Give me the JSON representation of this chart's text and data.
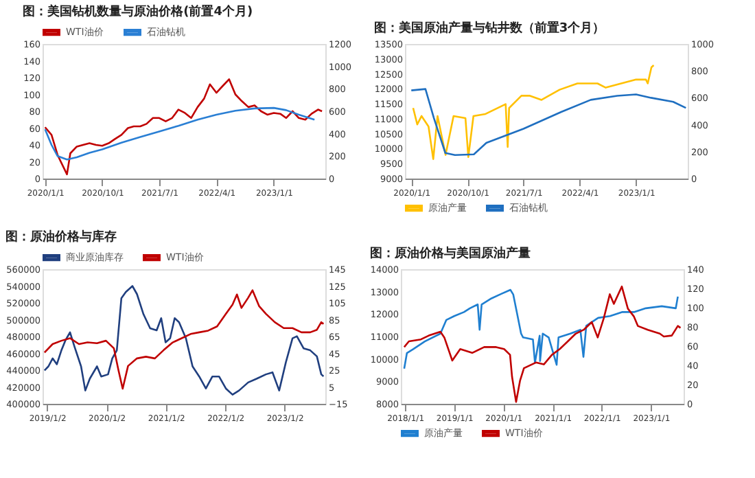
{
  "chart_data": [
    {
      "type": "line",
      "title": "图：美国钻机数量与原油价格(前置4个月)",
      "legend": "top",
      "xlim": [
        "2019-12-20",
        "2023-09-05"
      ],
      "xticks": [
        {
          "value": "2020-01-01",
          "label": "2020/1/1"
        },
        {
          "value": "2020-10-01",
          "label": "2020/10/1"
        },
        {
          "value": "2021-07-01",
          "label": "2021/7/1"
        },
        {
          "value": "2022-04-01",
          "label": "2022/4/1"
        },
        {
          "value": "2023-01-01",
          "label": "2023/1/1"
        }
      ],
      "ylim": [
        0,
        160
      ],
      "yticks": [
        0,
        20,
        40,
        60,
        80,
        100,
        120,
        140,
        160
      ],
      "y2lim": [
        0,
        1200
      ],
      "y2ticks": [
        0,
        200,
        400,
        600,
        800,
        1000,
        1200
      ],
      "series": [
        {
          "name": "WTI油价",
          "color": "#c00000",
          "x": [
            "2020-01-01",
            "2020-02-01",
            "2020-03-01",
            "2020-04-15",
            "2020-05-01",
            "2020-06-01",
            "2020-07-01",
            "2020-08-01",
            "2020-09-01",
            "2020-10-01",
            "2020-11-01",
            "2020-12-01",
            "2021-01-01",
            "2021-02-01",
            "2021-03-01",
            "2021-04-01",
            "2021-05-01",
            "2021-06-01",
            "2021-07-01",
            "2021-08-01",
            "2021-09-01",
            "2021-10-01",
            "2021-11-01",
            "2021-12-01",
            "2022-01-01",
            "2022-02-01",
            "2022-03-01",
            "2022-04-01",
            "2022-05-01",
            "2022-06-01",
            "2022-07-01",
            "2022-08-01",
            "2022-09-01",
            "2022-10-01",
            "2022-11-01",
            "2022-12-01",
            "2023-01-01",
            "2023-02-01",
            "2023-03-01",
            "2023-04-01",
            "2023-05-01",
            "2023-06-01",
            "2023-07-01",
            "2023-08-01",
            "2023-08-20"
          ],
          "values": [
            61,
            52,
            28,
            5,
            30,
            38,
            40,
            42,
            40,
            39,
            42,
            47,
            52,
            60,
            62,
            62,
            65,
            72,
            72,
            68,
            72,
            82,
            78,
            72,
            85,
            95,
            112,
            102,
            110,
            118,
            100,
            92,
            85,
            87,
            80,
            76,
            78,
            77,
            72,
            80,
            72,
            70,
            77,
            82,
            80
          ]
        },
        {
          "name": "石油钻机",
          "color": "#2a7fd4",
          "axis": "y2",
          "x": [
            "2020-01-01",
            "2020-02-01",
            "2020-03-01",
            "2020-04-15",
            "2020-06-01",
            "2020-08-01",
            "2020-10-01",
            "2021-01-01",
            "2021-04-01",
            "2021-07-01",
            "2021-10-01",
            "2022-01-01",
            "2022-04-01",
            "2022-07-01",
            "2022-10-01",
            "2023-01-01",
            "2023-03-01",
            "2023-05-01",
            "2023-07-15"
          ],
          "values": [
            440,
            300,
            200,
            170,
            190,
            230,
            260,
            320,
            370,
            420,
            470,
            525,
            570,
            605,
            625,
            630,
            610,
            570,
            525
          ]
        }
      ]
    },
    {
      "type": "line",
      "title": "图：美国原油产量与钻井数（前置3个月）",
      "legend": "bottom",
      "xlim": [
        "2019-12-01",
        "2023-09-10"
      ],
      "xticks": [
        {
          "value": "2020-01-01",
          "label": "2020/1/1"
        },
        {
          "value": "2020-10-01",
          "label": "2020/10/1"
        },
        {
          "value": "2021-07-01",
          "label": "2021/7/1"
        },
        {
          "value": "2022-04-01",
          "label": "2022/4/1"
        },
        {
          "value": "2023-01-01",
          "label": "2023/1/1"
        }
      ],
      "ylim": [
        9000,
        13500
      ],
      "yticks": [
        9000,
        9500,
        10000,
        10500,
        11000,
        11500,
        12000,
        12500,
        13000,
        13500
      ],
      "y2lim": [
        0,
        1000
      ],
      "y2ticks": [
        0,
        200,
        400,
        600,
        800,
        1000
      ],
      "series": [
        {
          "name": "原油产量",
          "color": "#ffc000",
          "x": [
            "2020-01-10",
            "2020-01-30",
            "2020-02-20",
            "2020-03-25",
            "2020-04-17",
            "2020-05-08",
            "2020-06-16",
            "2020-07-25",
            "2020-09-21",
            "2020-10-05",
            "2020-10-30",
            "2020-12-28",
            "2021-04-05",
            "2021-04-15",
            "2021-04-22",
            "2021-06-21",
            "2021-07-30",
            "2021-09-27",
            "2021-12-24",
            "2022-03-21",
            "2022-06-27",
            "2022-08-06",
            "2023-01-01",
            "2023-02-18",
            "2023-02-27",
            "2023-03-17",
            "2023-03-28"
          ],
          "values": [
            11360,
            10810,
            11090,
            10740,
            9650,
            11090,
            9790,
            11090,
            11020,
            9720,
            11090,
            11160,
            11490,
            10060,
            11360,
            11770,
            11770,
            11630,
            11970,
            12180,
            12180,
            12040,
            12310,
            12310,
            12180,
            12720,
            12790
          ]
        },
        {
          "name": "石油钻机",
          "color": "#1f6fc0",
          "axis": "y2",
          "x": [
            "2020-01-01",
            "2020-03-10",
            "2020-04-20",
            "2020-06-15",
            "2020-08-01",
            "2020-11-01",
            "2021-01-01",
            "2021-07-01",
            "2022-01-01",
            "2022-05-25",
            "2022-10-01",
            "2023-01-01",
            "2023-03-15",
            "2023-07-01",
            "2023-09-01"
          ],
          "values": [
            655,
            665,
            450,
            190,
            175,
            180,
            265,
            370,
            495,
            585,
            615,
            625,
            600,
            570,
            525
          ]
        }
      ]
    },
    {
      "type": "line",
      "title": "图：原油价格与库存",
      "legend": "top",
      "xlim": [
        "2018-12-05",
        "2023-09-10"
      ],
      "xticks": [
        {
          "value": "2019-01-02",
          "label": "2019/1/2"
        },
        {
          "value": "2020-01-02",
          "label": "2020/1/2"
        },
        {
          "value": "2021-01-02",
          "label": "2021/1/2"
        },
        {
          "value": "2022-01-02",
          "label": "2022/1/2"
        },
        {
          "value": "2023-01-02",
          "label": "2023/1/2"
        }
      ],
      "ylim": [
        400000,
        560000
      ],
      "yticks": [
        400000,
        420000,
        440000,
        460000,
        480000,
        500000,
        520000,
        540000,
        560000
      ],
      "y2lim": [
        -15,
        145
      ],
      "y2ticks": [
        -15,
        5,
        25,
        45,
        65,
        85,
        105,
        125,
        145
      ],
      "series": [
        {
          "name": "商业原油库存",
          "color": "#203f7f",
          "x": [
            "2018-12-17",
            "2019-01-10",
            "2019-02-05",
            "2019-03-03",
            "2019-03-31",
            "2019-04-25",
            "2019-05-23",
            "2019-06-19",
            "2019-07-30",
            "2019-08-25",
            "2019-09-22",
            "2019-11-05",
            "2019-12-01",
            "2020-01-12",
            "2020-02-07",
            "2020-03-06",
            "2020-04-03",
            "2020-04-30",
            "2020-06-10",
            "2020-07-08",
            "2020-08-17",
            "2020-09-27",
            "2020-11-06",
            "2020-12-04",
            "2020-12-31",
            "2021-01-28",
            "2021-02-25",
            "2021-03-24",
            "2021-05-05",
            "2021-06-15",
            "2021-07-26",
            "2021-09-05",
            "2021-10-15",
            "2021-11-25",
            "2022-01-06",
            "2022-02-16",
            "2022-03-28",
            "2022-05-23",
            "2022-07-16",
            "2022-09-09",
            "2022-10-20",
            "2022-11-30",
            "2023-01-10",
            "2023-02-20",
            "2023-03-19",
            "2023-04-29",
            "2023-06-09",
            "2023-07-20",
            "2023-08-16",
            "2023-08-30"
          ],
          "values": [
            439700,
            444500,
            454000,
            447000,
            463600,
            475500,
            485000,
            468300,
            444500,
            415800,
            430000,
            444500,
            432500,
            435000,
            454000,
            463600,
            525600,
            532800,
            540000,
            530400,
            506500,
            489800,
            487400,
            501800,
            473100,
            477900,
            501800,
            497000,
            477900,
            444500,
            432500,
            418200,
            432500,
            432500,
            418200,
            410900,
            415800,
            425400,
            430000,
            435000,
            437400,
            415800,
            449300,
            477900,
            480300,
            466000,
            463600,
            456400,
            435000,
            432600
          ]
        },
        {
          "name": "WTI油价",
          "color": "#c00000",
          "axis": "y2",
          "x": [
            "2018-12-17",
            "2019-02-05",
            "2019-03-31",
            "2019-05-23",
            "2019-07-17",
            "2019-09-08",
            "2019-11-05",
            "2019-12-30",
            "2020-02-17",
            "2020-03-16",
            "2020-04-11",
            "2020-05-14",
            "2020-07-08",
            "2020-09-01",
            "2020-10-26",
            "2020-12-20",
            "2021-02-13",
            "2021-04-09",
            "2021-06-03",
            "2021-07-26",
            "2021-09-19",
            "2021-11-13",
            "2022-01-06",
            "2022-02-16",
            "2022-03-15",
            "2022-04-12",
            "2022-05-23",
            "2022-06-19",
            "2022-07-30",
            "2022-09-09",
            "2022-11-03",
            "2022-12-28",
            "2023-02-20",
            "2023-04-16",
            "2023-06-09",
            "2023-07-20",
            "2023-08-16",
            "2023-08-30"
          ],
          "values": [
            46,
            56,
            60,
            63,
            56,
            58,
            57,
            60,
            51,
            25,
            3,
            30,
            39,
            41,
            39,
            49,
            58,
            63,
            68,
            70,
            72,
            77,
            92,
            103,
            115,
            99,
            111,
            120,
            101,
            92,
            82,
            75,
            75,
            70,
            70,
            73,
            82,
            80
          ]
        }
      ]
    },
    {
      "type": "line",
      "title": "图：原油价格与美国原油产量",
      "legend": "bottom",
      "xlim": [
        "2017-12-01",
        "2023-09-01"
      ],
      "xticks": [
        {
          "value": "2018-01-01",
          "label": "2018/1/1"
        },
        {
          "value": "2019-01-01",
          "label": "2019/1/1"
        },
        {
          "value": "2020-01-01",
          "label": "2020/1/1"
        },
        {
          "value": "2021-01-01",
          "label": "2021/1/1"
        },
        {
          "value": "2022-01-01",
          "label": "2022/1/1"
        },
        {
          "value": "2023-01-01",
          "label": "2023/1/1"
        }
      ],
      "ylim": [
        8000,
        14000
      ],
      "yticks": [
        8000,
        9000,
        10000,
        11000,
        12000,
        13000,
        14000
      ],
      "y2lim": [
        0,
        140
      ],
      "y2ticks": [
        0,
        20,
        40,
        60,
        80,
        100,
        120,
        140
      ],
      "series": [
        {
          "name": "原油产量",
          "color": "#1f7fd0",
          "x": [
            "2017-12-26",
            "2018-01-15",
            "2018-03-01",
            "2018-05-28",
            "2018-09-21",
            "2018-11-04",
            "2019-01-01",
            "2019-03-15",
            "2019-04-28",
            "2019-06-25",
            "2019-07-09",
            "2019-07-24",
            "2019-10-05",
            "2019-12-17",
            "2020-02-23",
            "2020-03-15",
            "2020-04-13",
            "2020-05-12",
            "2020-05-27",
            "2020-08-08",
            "2020-08-23",
            "2020-09-27",
            "2020-09-30",
            "2020-10-20",
            "2020-12-03",
            "2021-01-31",
            "2021-02-14",
            "2021-05-13",
            "2021-07-26",
            "2021-08-18",
            "2021-09-08",
            "2021-12-05",
            "2022-03-03",
            "2022-05-31",
            "2022-08-28",
            "2022-11-24",
            "2023-03-23",
            "2023-07-05",
            "2023-07-20"
          ],
          "values": [
            9570,
            10260,
            10430,
            10780,
            11130,
            11740,
            11910,
            12090,
            12260,
            12430,
            11300,
            12430,
            12700,
            12900,
            13080,
            12870,
            12000,
            11130,
            10960,
            10870,
            9830,
            11040,
            9910,
            11130,
            10960,
            9740,
            10960,
            11130,
            11300,
            10090,
            11480,
            11830,
            11910,
            12090,
            12090,
            12260,
            12350,
            12260,
            12780
          ]
        },
        {
          "name": "WTI油价",
          "color": "#c00000",
          "axis": "y2",
          "x": [
            "2017-12-26",
            "2018-01-30",
            "2018-04-29",
            "2018-06-27",
            "2018-09-21",
            "2018-10-20",
            "2018-12-18",
            "2019-02-15",
            "2019-05-15",
            "2019-08-12",
            "2019-11-09",
            "2020-01-07",
            "2020-02-20",
            "2020-03-06",
            "2020-04-05",
            "2020-05-04",
            "2020-06-02",
            "2020-08-30",
            "2020-10-28",
            "2020-12-27",
            "2021-02-23",
            "2021-04-24",
            "2021-06-22",
            "2021-08-20",
            "2021-10-19",
            "2021-12-02",
            "2022-01-16",
            "2022-03-02",
            "2022-04-01",
            "2022-05-30",
            "2022-07-14",
            "2022-08-27",
            "2022-09-26",
            "2022-12-09",
            "2023-03-08",
            "2023-04-07",
            "2023-06-05",
            "2023-07-20",
            "2023-08-09"
          ],
          "values": [
            59,
            65,
            67,
            71,
            75,
            69,
            45,
            57,
            53,
            59,
            59,
            57,
            51,
            28,
            2,
            24,
            37,
            43,
            41,
            51,
            57,
            65,
            73,
            77,
            85,
            69,
            89,
            114,
            104,
            122,
            99,
            91,
            81,
            77,
            73,
            70,
            71,
            81,
            79
          ]
        }
      ]
    }
  ]
}
